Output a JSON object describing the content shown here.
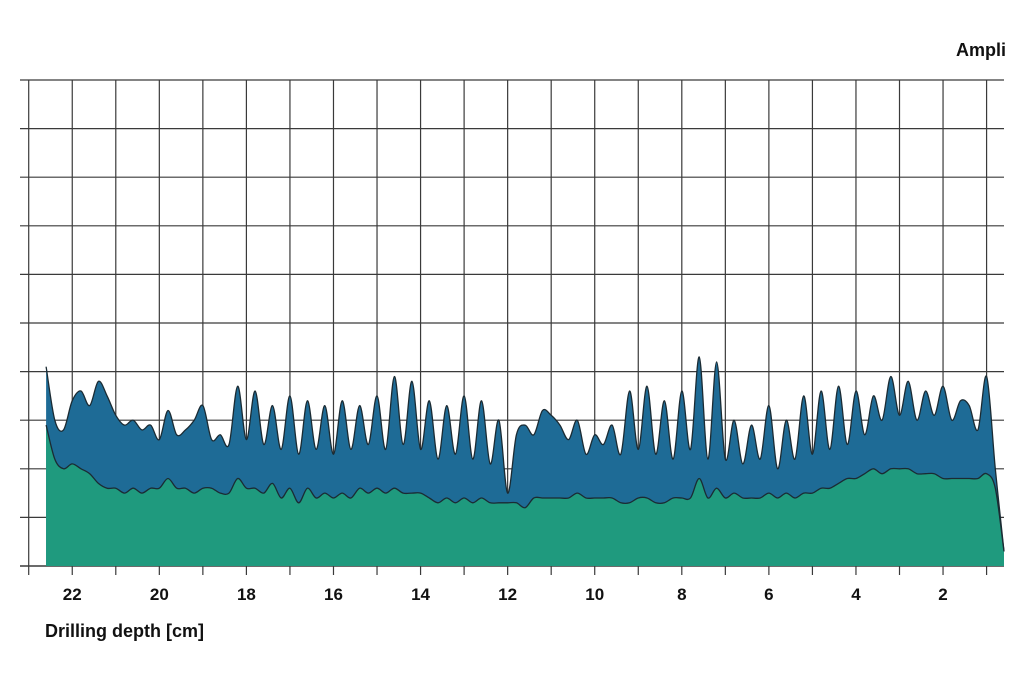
{
  "chart_data": {
    "type": "area",
    "title": "",
    "xlabel": "Drilling depth [cm]",
    "ylabel": "Ampli",
    "x_reversed": true,
    "xlim": [
      23.2,
      0.6
    ],
    "ylim": [
      0,
      100
    ],
    "grid": true,
    "legend": "none",
    "x_tick_labels": [
      "22",
      "20",
      "18",
      "16",
      "14",
      "12",
      "10",
      "8",
      "6",
      "4",
      "2"
    ],
    "x_tick_values": [
      22,
      20,
      18,
      16,
      14,
      12,
      10,
      8,
      6,
      4,
      2
    ],
    "x": [
      22.6,
      22.4,
      22.2,
      22.0,
      21.8,
      21.6,
      21.4,
      21.2,
      21.0,
      20.8,
      20.6,
      20.4,
      20.2,
      20.0,
      19.8,
      19.6,
      19.4,
      19.2,
      19.0,
      18.8,
      18.6,
      18.4,
      18.2,
      18.0,
      17.8,
      17.6,
      17.4,
      17.2,
      17.0,
      16.8,
      16.6,
      16.4,
      16.2,
      16.0,
      15.8,
      15.6,
      15.4,
      15.2,
      15.0,
      14.8,
      14.6,
      14.4,
      14.2,
      14.0,
      13.8,
      13.6,
      13.4,
      13.2,
      13.0,
      12.8,
      12.6,
      12.4,
      12.2,
      12.0,
      11.8,
      11.6,
      11.4,
      11.2,
      11.0,
      10.8,
      10.6,
      10.4,
      10.2,
      10.0,
      9.8,
      9.6,
      9.4,
      9.2,
      9.0,
      8.8,
      8.6,
      8.4,
      8.2,
      8.0,
      7.8,
      7.6,
      7.4,
      7.2,
      7.0,
      6.8,
      6.6,
      6.4,
      6.2,
      6.0,
      5.8,
      5.6,
      5.4,
      5.2,
      5.0,
      4.8,
      4.6,
      4.4,
      4.2,
      4.0,
      3.8,
      3.6,
      3.4,
      3.2,
      3.0,
      2.8,
      2.6,
      2.4,
      2.2,
      2.0,
      1.8,
      1.6,
      1.4,
      1.2,
      1.0,
      0.8,
      0.6
    ],
    "series": [
      {
        "color": "#1e6b96",
        "values": [
          41,
          30,
          28,
          34,
          36,
          33,
          38,
          35,
          31,
          29,
          30,
          28,
          29,
          26,
          32,
          27,
          28,
          30,
          33,
          26,
          27,
          25,
          37,
          26,
          36,
          25,
          33,
          24,
          35,
          23,
          34,
          24,
          33,
          23,
          34,
          24,
          33,
          25,
          35,
          24,
          39,
          25,
          38,
          24,
          34,
          22,
          33,
          23,
          35,
          22,
          34,
          21,
          30,
          15,
          27,
          29,
          27,
          32,
          31,
          29,
          26,
          30,
          23,
          27,
          25,
          29,
          23,
          36,
          24,
          37,
          23,
          34,
          22,
          36,
          24,
          43,
          22,
          42,
          22,
          30,
          21,
          29,
          22,
          33,
          20,
          30,
          22,
          35,
          23,
          36,
          24,
          37,
          25,
          36,
          27,
          35,
          30,
          39,
          31,
          38,
          30,
          36,
          31,
          37,
          30,
          34,
          33,
          28,
          39,
          20,
          3
        ]
      },
      {
        "color": "#1f9a7e",
        "values": [
          29,
          22,
          20,
          21,
          20,
          19,
          17,
          16,
          16,
          15,
          16,
          15,
          16,
          16,
          18,
          16,
          16,
          15,
          16,
          16,
          15,
          15,
          18,
          16,
          16,
          15,
          17,
          14,
          16,
          13,
          16,
          14,
          15,
          14,
          15,
          14,
          16,
          15,
          16,
          15,
          16,
          15,
          15,
          15,
          14,
          13,
          14,
          13,
          14,
          13,
          14,
          13,
          13,
          13,
          13,
          12,
          14,
          14,
          14,
          14,
          14,
          15,
          14,
          14,
          14,
          14,
          13,
          13,
          14,
          14,
          13,
          13,
          14,
          14,
          14,
          18,
          14,
          16,
          14,
          15,
          14,
          14,
          14,
          15,
          14,
          15,
          14,
          15,
          15,
          16,
          16,
          17,
          18,
          18,
          19,
          20,
          19,
          20,
          20,
          20,
          19,
          19,
          19,
          18,
          18,
          18,
          18,
          18,
          19,
          16,
          3
        ]
      }
    ]
  }
}
